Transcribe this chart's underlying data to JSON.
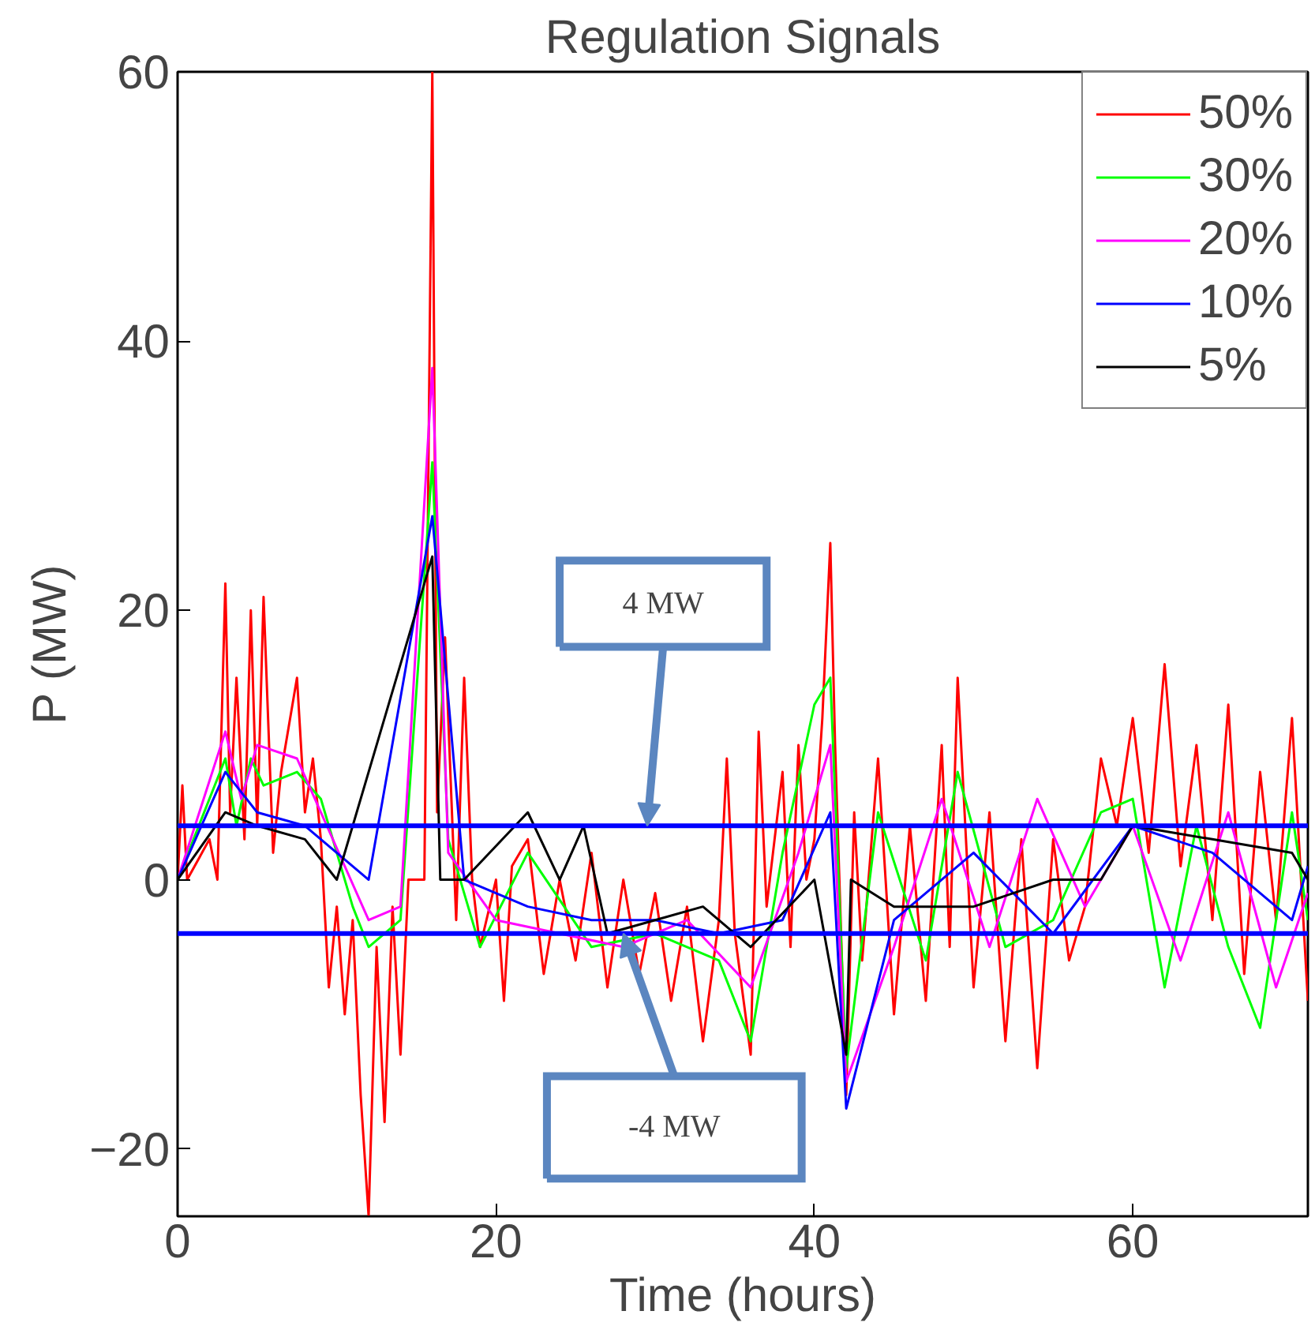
{
  "chart_data": {
    "type": "line",
    "title": "Regulation Signals",
    "xlabel": "Time (hours)",
    "ylabel": "P (MW)",
    "xlim": [
      0,
      71
    ],
    "ylim": [
      -25,
      60
    ],
    "xticks": [
      0,
      20,
      40,
      60
    ],
    "yticks": [
      -20,
      0,
      20,
      40,
      60
    ],
    "grid": false,
    "legend": "top right",
    "marker": "none",
    "line_style": "solid",
    "series": [
      {
        "name": "50%",
        "color": "#ff0000",
        "x": [
          0,
          0.3,
          0.6,
          2,
          2.5,
          3,
          3.3,
          3.7,
          4.2,
          4.6,
          5,
          5.4,
          6,
          6.5,
          7.5,
          8,
          8.5,
          9,
          9.5,
          10,
          10.5,
          11,
          11.5,
          12,
          12.5,
          13,
          13.5,
          14,
          14.5,
          15,
          15.5,
          16,
          16.3,
          16.8,
          17.5,
          18,
          18.5,
          19,
          20,
          20.5,
          21,
          22,
          23,
          24,
          25,
          26,
          27,
          28,
          29,
          30,
          31,
          32,
          33,
          34,
          34.5,
          35,
          36,
          36.5,
          37,
          38,
          38.5,
          39,
          39.5,
          40,
          40.5,
          41,
          41.3,
          42,
          42.5,
          43,
          44,
          45,
          46,
          47,
          48,
          48.5,
          49,
          50,
          51,
          52,
          53,
          54,
          55,
          56,
          57,
          58,
          59,
          60,
          61,
          62,
          63,
          64,
          65,
          66,
          67,
          68,
          69,
          70,
          71
        ],
        "values": [
          0,
          7,
          0,
          3,
          0,
          22,
          5,
          15,
          3,
          20,
          4,
          21,
          2,
          8,
          15,
          5,
          9,
          3,
          -8,
          -2,
          -10,
          -3,
          -16,
          -25,
          -5,
          -18,
          -2,
          -13,
          0,
          0,
          0,
          60,
          5,
          18,
          -3,
          15,
          0,
          -5,
          0,
          -9,
          1,
          3,
          -7,
          0,
          -6,
          2,
          -8,
          0,
          -7,
          -1,
          -9,
          -2,
          -12,
          -3,
          9,
          -4,
          -13,
          11,
          -2,
          8,
          -5,
          10,
          0,
          3,
          12,
          25,
          10,
          -16,
          5,
          -6,
          9,
          -10,
          4,
          -9,
          10,
          -5,
          15,
          -8,
          5,
          -12,
          3,
          -14,
          3,
          -6,
          -2,
          9,
          4,
          12,
          2,
          16,
          1,
          10,
          -3,
          13,
          -7,
          8,
          -3,
          12,
          -9
        ]
      },
      {
        "name": "30%",
        "color": "#00ff00",
        "x": [
          0,
          3,
          3.7,
          4.6,
          5.4,
          7.5,
          9,
          11,
          12,
          14,
          16,
          17,
          19,
          22,
          26,
          30,
          34,
          36,
          38,
          40,
          41,
          42,
          44,
          47,
          49,
          52,
          55,
          58,
          60,
          62,
          64,
          66,
          68,
          70,
          71
        ],
        "values": [
          0,
          9,
          4,
          9,
          7,
          8,
          6,
          -2,
          -5,
          -3,
          31,
          3,
          -5,
          2,
          -5,
          -4,
          -6,
          -12,
          2,
          13,
          15,
          -14,
          5,
          -6,
          8,
          -5,
          -3,
          5,
          6,
          -8,
          4,
          -5,
          -11,
          5,
          -3
        ]
      },
      {
        "name": "20%",
        "color": "#ff00ff",
        "x": [
          0,
          3,
          4,
          5,
          7.5,
          9,
          12,
          14,
          16,
          17,
          20,
          24,
          28,
          32,
          36,
          39,
          41,
          42,
          45,
          48,
          51,
          54,
          57,
          60,
          63,
          66,
          69,
          71
        ],
        "values": [
          0,
          11,
          6,
          10,
          9,
          5,
          -3,
          -2,
          38,
          2,
          -3,
          -4,
          -5,
          -3,
          -8,
          2,
          10,
          -15,
          -5,
          6,
          -5,
          6,
          -2,
          4,
          -6,
          5,
          -8,
          -1
        ]
      },
      {
        "name": "10%",
        "color": "#0000ff",
        "x": [
          0,
          3,
          5,
          8,
          12,
          16,
          18,
          22,
          26,
          30,
          34,
          38,
          41,
          42,
          45,
          50,
          55,
          60,
          65,
          70,
          71
        ],
        "values": [
          0,
          8,
          5,
          4,
          0,
          27,
          0,
          -2,
          -3,
          -3,
          -4,
          -3,
          5,
          -17,
          -3,
          2,
          -4,
          4,
          2,
          -3,
          1
        ]
      },
      {
        "name": "5%",
        "color": "#000000",
        "x": [
          0,
          3,
          5,
          8,
          10,
          16,
          16.5,
          18,
          22,
          24,
          25.5,
          27,
          30,
          33,
          36,
          40,
          42,
          42.3,
          45,
          50,
          55,
          58,
          60,
          65,
          70,
          71
        ],
        "values": [
          0,
          5,
          4,
          3,
          0,
          24,
          0,
          0,
          5,
          0,
          4,
          -4,
          -3,
          -2,
          -5,
          0,
          -13,
          0,
          -2,
          -2,
          0,
          0,
          4,
          3,
          2,
          0
        ]
      }
    ],
    "ref_lines": [
      {
        "axis": "y",
        "value": 4,
        "color": "#0000ff"
      },
      {
        "axis": "y",
        "value": -4,
        "color": "#0000ff"
      }
    ],
    "annotations": [
      {
        "text": "4 MW",
        "x": 29.5,
        "y": 4
      },
      {
        "text": "-4 MW",
        "x": 28,
        "y": -4
      }
    ]
  }
}
